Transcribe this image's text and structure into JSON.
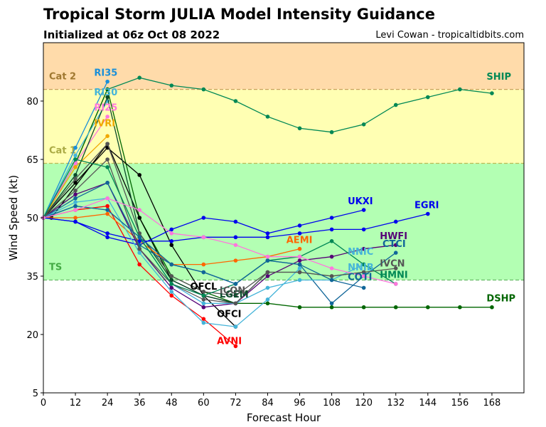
{
  "header": {
    "title": "Tropical Storm JULIA Model Intensity Guidance",
    "subtitle": "Initialized at 06z Oct 08 2022",
    "credit": "Levi Cowan - tropicaltidbits.com"
  },
  "chart_data": {
    "type": "line",
    "title": "Tropical Storm JULIA Model Intensity Guidance",
    "subtitle": "Initialized at 06z Oct 08 2022",
    "xlabel": "Forecast Hour",
    "ylabel": "Wind Speed (kt)",
    "xlim": [
      0,
      180
    ],
    "ylim": [
      5,
      95
    ],
    "xticks": [
      0,
      12,
      24,
      36,
      48,
      60,
      72,
      84,
      96,
      108,
      120,
      132,
      144,
      156,
      168
    ],
    "yticks": [
      5,
      20,
      35,
      50,
      65,
      80
    ],
    "grid": false,
    "bands": [
      {
        "label": "TS",
        "from": 34,
        "to": 64,
        "color": "#b3ffb3",
        "line_color": "#66bb66",
        "label_color": "#44aa44"
      },
      {
        "label": "Cat 1",
        "from": 64,
        "to": 83,
        "color": "#ffffb3",
        "line_color": "#bbbb55",
        "label_color": "#aaaa44"
      },
      {
        "label": "Cat 2",
        "from": 83,
        "to": 95,
        "color": "#ffdbaa",
        "line_color": "#c8a060",
        "label_color": "#a07830"
      }
    ],
    "series": [
      {
        "name": "SHIP",
        "color": "#008855",
        "label_at": [
          166,
          85.5
        ],
        "x": [
          0,
          12,
          24,
          36,
          48,
          60,
          72,
          84,
          96,
          108,
          120,
          132,
          144,
          156,
          168
        ],
        "y": [
          50,
          64,
          83,
          86,
          84,
          83,
          80,
          76,
          73,
          72,
          74,
          79,
          81,
          83,
          82
        ]
      },
      {
        "name": "DSHP",
        "color": "#006600",
        "label_at": [
          166,
          28.5
        ],
        "x": [
          0,
          12,
          24,
          36,
          48,
          60,
          72,
          84,
          96,
          108,
          120,
          132,
          144,
          156,
          168
        ],
        "y": [
          50,
          64,
          83,
          50,
          35,
          31,
          28,
          28,
          27,
          27,
          27,
          27,
          27,
          27,
          27
        ]
      },
      {
        "name": "RI35",
        "color": "#1a8fd9",
        "label_at": [
          19,
          86.5
        ],
        "x": [
          0,
          12,
          24
        ],
        "y": [
          50,
          68,
          85
        ]
      },
      {
        "name": "RI30",
        "color": "#44b4d9",
        "label_at": [
          19,
          81.5
        ],
        "x": [
          0,
          12,
          24
        ],
        "y": [
          50,
          66,
          80
        ]
      },
      {
        "name": "RI25",
        "color": "#ff77dd",
        "label_at": [
          19,
          77.5
        ],
        "x": [
          0,
          12,
          24
        ],
        "y": [
          50,
          64,
          76
        ]
      },
      {
        "name": "IVRI",
        "color": "#f0a800",
        "label_at": [
          19,
          73.5
        ],
        "x": [
          0,
          12,
          24
        ],
        "y": [
          50,
          63,
          71
        ]
      },
      {
        "name": "OFCI",
        "color": "#000000",
        "label_at": [
          65,
          24.5
        ],
        "x": [
          0,
          12,
          24,
          36,
          48,
          60,
          72
        ],
        "y": [
          50,
          59,
          68,
          61,
          43,
          30,
          22
        ]
      },
      {
        "name": "OFCL",
        "color": "#000000",
        "label_at": [
          55,
          31.5
        ],
        "x": [
          0,
          3,
          24,
          36,
          48,
          60,
          72
        ],
        "y": [
          50,
          50,
          69,
          50,
          34,
          30,
          28
        ]
      },
      {
        "name": "AVNI",
        "color": "#ff0000",
        "label_at": [
          65,
          17.5
        ],
        "x": [
          0,
          12,
          24,
          36,
          48,
          60,
          72
        ],
        "y": [
          50,
          52,
          53,
          38,
          30,
          24,
          17
        ]
      },
      {
        "name": "LGEM",
        "color": "#0a4a2a",
        "label_at": [
          66,
          29.5
        ],
        "x": [
          0,
          12,
          24,
          36,
          48,
          60,
          72,
          84
        ],
        "y": [
          50,
          61,
          81,
          46,
          34,
          30,
          28,
          36
        ]
      },
      {
        "name": "ICON",
        "color": "#555555",
        "label_at": [
          66,
          30.5
        ],
        "x": [
          0,
          12,
          24,
          36,
          48,
          60,
          72,
          84,
          96,
          108,
          120
        ],
        "y": [
          50,
          60,
          69,
          46,
          35,
          31,
          30,
          36,
          36,
          35,
          36
        ]
      },
      {
        "name": "AEMI",
        "color": "#ff6600",
        "label_at": [
          91,
          43.5
        ],
        "x": [
          0,
          12,
          24,
          36,
          48,
          60,
          72,
          84,
          96
        ],
        "y": [
          50,
          50,
          51,
          44,
          38,
          38,
          39,
          40,
          42
        ]
      },
      {
        "name": "UKXI",
        "color": "#0000ee",
        "label_at": [
          114,
          53.5
        ],
        "x": [
          0,
          12,
          24,
          36,
          48,
          60,
          72,
          84,
          96,
          108,
          120
        ],
        "y": [
          50,
          49,
          45,
          43,
          47,
          50,
          49,
          46,
          48,
          50,
          52
        ]
      },
      {
        "name": "EGRI",
        "color": "#0000ee",
        "label_at": [
          139,
          52.5
        ],
        "x": [
          0,
          12,
          24,
          36,
          48,
          60,
          72,
          84,
          96,
          108,
          120,
          132,
          144
        ],
        "y": [
          50,
          49,
          46,
          44,
          44,
          45,
          45,
          45,
          46,
          47,
          47,
          49,
          51
        ]
      },
      {
        "name": "HWFI",
        "color": "#550077",
        "label_at": [
          126,
          44.5
        ],
        "x": [
          0,
          12,
          24,
          36,
          48,
          60,
          72,
          84,
          96,
          108,
          120,
          132
        ],
        "y": [
          50,
          56,
          59,
          42,
          32,
          27,
          28,
          35,
          39,
          40,
          42,
          43
        ]
      },
      {
        "name": "CTCI",
        "color": "#116699",
        "label_at": [
          127,
          42.5
        ],
        "x": [
          0,
          12,
          24,
          36,
          48,
          60,
          72,
          84,
          96,
          108,
          120,
          132
        ],
        "y": [
          50,
          55,
          59,
          43,
          38,
          36,
          33,
          39,
          38,
          28,
          35,
          41
        ]
      },
      {
        "name": "NNIC",
        "color": "#44b4d9",
        "label_at": [
          114,
          40.5
        ],
        "x": [
          0,
          12,
          24,
          36,
          48,
          60,
          72,
          84,
          96,
          108,
          120
        ],
        "y": [
          50,
          53,
          52,
          45,
          33,
          28,
          28,
          32,
          34,
          34,
          38
        ]
      },
      {
        "name": "NNIB",
        "color": "#44b4d9",
        "label_at": [
          114,
          36.5
        ],
        "x": [
          0,
          12,
          24,
          36,
          48,
          60,
          72,
          84,
          96
        ],
        "y": [
          50,
          54,
          55,
          41,
          31,
          23,
          22,
          29,
          37
        ]
      },
      {
        "name": "IVCN",
        "color": "#555555",
        "label_at": [
          126,
          37.5
        ],
        "x": [
          0,
          12,
          24,
          36,
          48,
          60,
          72,
          84,
          96,
          108,
          120,
          132
        ],
        "y": [
          50,
          57,
          65,
          42,
          33,
          29,
          28,
          36,
          36,
          35,
          36,
          37
        ]
      },
      {
        "name": "HMNI",
        "color": "#008855",
        "label_at": [
          126,
          34.5
        ],
        "x": [
          0,
          12,
          24,
          36,
          48,
          60,
          72,
          84,
          96,
          108,
          120,
          132
        ],
        "y": [
          50,
          65,
          63,
          45,
          33,
          30,
          33,
          39,
          40,
          44,
          38,
          33
        ]
      },
      {
        "name": "COTI",
        "color": "#116699",
        "label_at": [
          114,
          34.0
        ],
        "x": [
          0,
          12,
          24,
          36,
          48,
          60,
          72,
          84,
          96,
          108,
          120
        ],
        "y": [
          50,
          53,
          52,
          45,
          38,
          36,
          33,
          39,
          38,
          34,
          32
        ]
      },
      {
        "name": "RI25 pink trend",
        "color": "#ff77dd",
        "label_at": null,
        "x": [
          0,
          12,
          24,
          36,
          48,
          60,
          72,
          84,
          96,
          108,
          120,
          132
        ],
        "y": [
          50,
          52,
          55,
          52,
          46,
          45,
          43,
          40,
          40,
          37,
          35,
          33
        ]
      }
    ]
  }
}
